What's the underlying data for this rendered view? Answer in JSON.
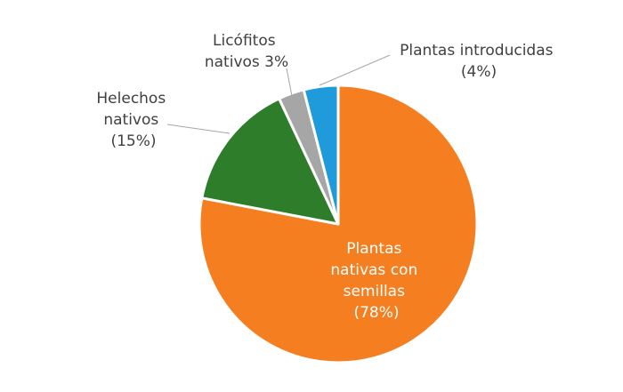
{
  "chart_data": {
    "type": "pie",
    "title": "",
    "slices": [
      {
        "key": "semillas",
        "value": 78,
        "color": "#F57F20",
        "label_lines": [
          "Plantas",
          "nativas con",
          "semillas",
          "(78%)"
        ]
      },
      {
        "key": "helechos",
        "value": 15,
        "color": "#2E7D2A",
        "label_lines": [
          "Helechos",
          "nativos",
          "(15%)"
        ]
      },
      {
        "key": "licofitos",
        "value": 3,
        "color": "#A6A6A6",
        "label_lines": [
          "Licófitos",
          "nativos 3%"
        ]
      },
      {
        "key": "introducidas",
        "value": 4,
        "color": "#1F9BDB",
        "label_lines": [
          "Plantas introducidas",
          "(4%)"
        ]
      }
    ],
    "start_angle_deg": 0,
    "direction": "clockwise",
    "legend": "none"
  }
}
